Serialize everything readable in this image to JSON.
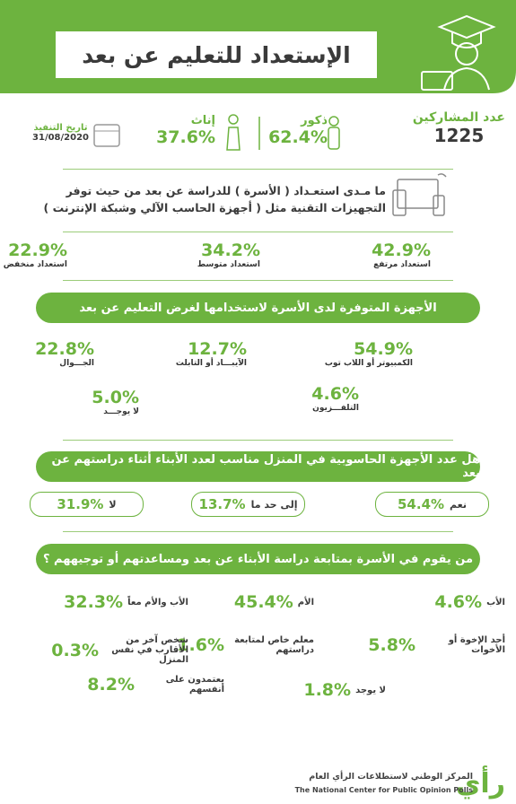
{
  "header": {
    "title": "الإستعداد للتعليم عن بعد"
  },
  "stats": {
    "participants": {
      "label": "عدد المشاركين",
      "value": "1225"
    },
    "male": {
      "label": "ذكور",
      "value": "62.4%"
    },
    "female": {
      "label": "إناث",
      "value": "37.6%"
    },
    "date": {
      "label": "تاريخ التنفيذ",
      "value": "31/08/2020"
    }
  },
  "readiness": {
    "question": [
      "ما مـدى استعـداد ( الأسرة ) للدراسة عن بعد من حيث توفر",
      "التجهيزات التقنية مثل ( أجهزة الحاسب الآلي وشبكة الإنترنت )"
    ],
    "items": [
      {
        "value": "42.9%",
        "label": "استعداد مرتفع"
      },
      {
        "value": "34.2%",
        "label": "استعداد متوسط"
      },
      {
        "value": "22.9%",
        "label": "استعداد منخفض"
      }
    ]
  },
  "devices": {
    "title": "الأجهزة المتوفرة لدى الأسرة لاستخدامها لغرض التعليم عن بعد",
    "items": [
      {
        "value": "54.9%",
        "label": "الكمبيوتر أو اللاب توب"
      },
      {
        "value": "12.7%",
        "label": "الآيبـــاد أو التابلت"
      },
      {
        "value": "22.8%",
        "label": "الجـــوال"
      },
      {
        "value": "4.6%",
        "label": "التلفـــزيون"
      },
      {
        "value": "5.0%",
        "label": "لا يوجـــد"
      }
    ]
  },
  "sufficiency": {
    "title": "هل عدد الأجهزة الحاسوبية في المنزل مناسب لعدد الأبناء أثناء دراستهم عن بعد",
    "items": [
      {
        "value": "54.4%",
        "label": "نعم"
      },
      {
        "value": "13.7%",
        "label": "إلى حد ما"
      },
      {
        "value": "31.9%",
        "label": "لا"
      }
    ]
  },
  "supervision": {
    "title": "من يقوم في الأسرة بمتابعة دراسة الأبناء عن بعد ومساعدتهم أو توجيههم ؟",
    "items": [
      {
        "value": "4.6%",
        "label": "الأب"
      },
      {
        "value": "45.4%",
        "label": "الأم"
      },
      {
        "value": "32.3%",
        "label": "الأب والأم معاً"
      },
      {
        "value": "5.8%",
        "label": "أحد الإخوة أو الأخوات"
      },
      {
        "value": "1.6%",
        "label": "معلم خاص لمتابعة دراستهم"
      },
      {
        "value": "0.3%",
        "label": "شخص آخر من الأقارب في نفس المنزل"
      },
      {
        "value": "1.8%",
        "label": "لا يوجد"
      },
      {
        "value": "8.2%",
        "label": "يعتمدون على أنفسهم"
      }
    ]
  },
  "footer": {
    "logo": "رأي",
    "name_ar": "المركز الوطني لاستطلاعات الرأي العام",
    "name_en": "The National Center for Public Opinion Polls"
  }
}
